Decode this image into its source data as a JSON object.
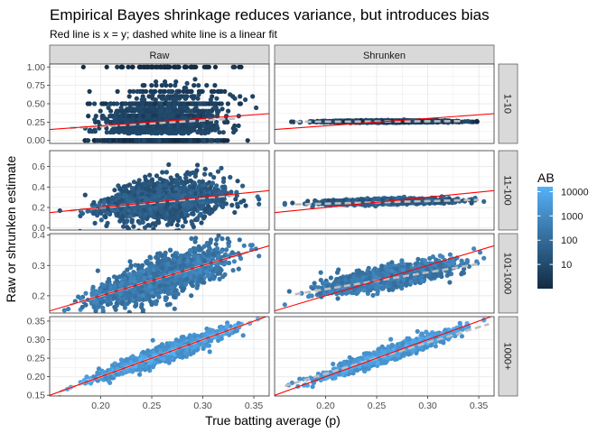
{
  "chart_data": {
    "type": "scatter",
    "title": "Empirical Bayes shrinkage reduces variance, but introduces bias",
    "subtitle": "Red line is x = y; dashed white line is a linear fit",
    "xlabel": "True batting average (p)",
    "ylabel": "Raw or shrunken estimate",
    "facet_columns": [
      "Raw",
      "Shrunken"
    ],
    "facet_rows": [
      "1-10",
      "11-100",
      "101-1000",
      "1000+"
    ],
    "xlim": [
      0.15,
      0.365
    ],
    "x_ticks": [
      0.2,
      0.25,
      0.3,
      0.35
    ],
    "x_tick_labels": [
      "0.20",
      "0.25",
      "0.30",
      "0.35"
    ],
    "rows": [
      {
        "ylim": [
          -0.04,
          1.04
        ],
        "y_ticks": [
          0,
          0.25,
          0.5,
          0.75,
          1
        ],
        "y_tick_labels": [
          "0.00",
          "0.25",
          "0.50",
          "0.75",
          "1.00"
        ]
      },
      {
        "ylim": [
          -0.02,
          0.755
        ],
        "y_ticks": [
          0,
          0.2,
          0.4,
          0.6
        ],
        "y_tick_labels": [
          "0.0",
          "0.2",
          "0.4",
          "0.6"
        ]
      },
      {
        "ylim": [
          0.143,
          0.405
        ],
        "y_ticks": [
          0.2,
          0.3,
          0.4
        ],
        "y_tick_labels": [
          "0.2",
          "0.3",
          "0.4"
        ]
      },
      {
        "ylim": [
          0.148,
          0.362
        ],
        "y_ticks": [
          0.15,
          0.2,
          0.25,
          0.3,
          0.35
        ],
        "y_tick_labels": [
          "0.15",
          "0.20",
          "0.25",
          "0.30",
          "0.35"
        ]
      }
    ],
    "reference_line": {
      "slope": 1,
      "intercept": 0,
      "color": "#ff0000"
    },
    "fits": [
      {
        "row": "1-10",
        "column": "Raw",
        "x": [
          0.17,
          0.335
        ],
        "y": [
          0.17,
          0.3
        ]
      },
      {
        "row": "1-10",
        "column": "Shrunken",
        "x": [
          0.17,
          0.335
        ],
        "y": [
          0.255,
          0.263
        ]
      },
      {
        "row": "11-100",
        "column": "Raw",
        "x": [
          0.17,
          0.335
        ],
        "y": [
          0.17,
          0.325
        ]
      },
      {
        "row": "11-100",
        "column": "Shrunken",
        "x": [
          0.17,
          0.35
        ],
        "y": [
          0.23,
          0.275
        ]
      },
      {
        "row": "101-1000",
        "column": "Raw",
        "x": [
          0.17,
          0.345
        ],
        "y": [
          0.17,
          0.345
        ]
      },
      {
        "row": "101-1000",
        "column": "Shrunken",
        "x": [
          0.17,
          0.35
        ],
        "y": [
          0.205,
          0.305
        ]
      },
      {
        "row": "1000+",
        "column": "Raw",
        "x": [
          0.16,
          0.36
        ],
        "y": [
          0.16,
          0.36
        ]
      },
      {
        "row": "1000+",
        "column": "Shrunken",
        "x": [
          0.16,
          0.36
        ],
        "y": [
          0.175,
          0.342
        ]
      }
    ],
    "fit_line_color": "#bebebe",
    "color_scale": {
      "name": "AB",
      "trans": "log10",
      "low": "#132b43",
      "high": "#56b1f7",
      "range": [
        1,
        16000
      ],
      "breaks": [
        10,
        100,
        1000,
        10000
      ],
      "break_labels": [
        "10",
        "100",
        "1000",
        "10000"
      ]
    },
    "legend_position": "right",
    "grid": true,
    "n_points_per_panel": 2000
  }
}
